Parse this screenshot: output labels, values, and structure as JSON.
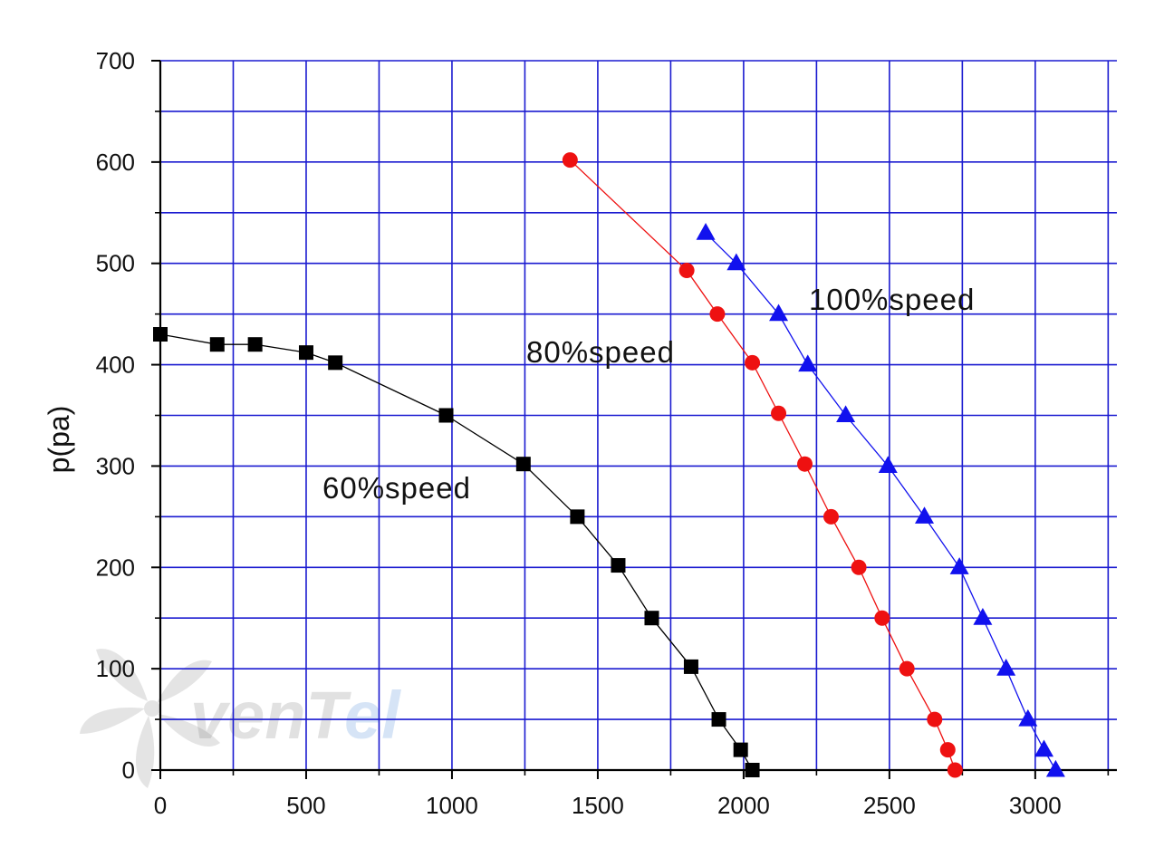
{
  "chart_data": {
    "type": "line",
    "title": "",
    "xlabel": "",
    "ylabel": "p(pa)",
    "xlim": [
      0,
      3280
    ],
    "ylim": [
      0,
      700
    ],
    "x_ticks": [
      "0",
      "500",
      "1000",
      "1500",
      "2000",
      "2500",
      "3000"
    ],
    "y_ticks": [
      "0",
      "100",
      "200",
      "300",
      "400",
      "500",
      "600",
      "700"
    ],
    "grid": true,
    "grid_color": "#1a1ad0",
    "watermark": {
      "brand": "venTel",
      "part1": "venT",
      "part2": "el"
    },
    "series": [
      {
        "name": "60%speed",
        "color": "#000000",
        "marker": "square",
        "x": [
          0,
          195,
          325,
          500,
          600,
          980,
          1245,
          1430,
          1570,
          1685,
          1820,
          1915,
          1990,
          2030
        ],
        "y": [
          430,
          420,
          420,
          412,
          402,
          350,
          302,
          250,
          202,
          150,
          102,
          50,
          20,
          0
        ]
      },
      {
        "name": "80%speed",
        "color": "#ee1111",
        "marker": "circle",
        "x": [
          1405,
          1805,
          1910,
          2030,
          2120,
          2210,
          2300,
          2395,
          2475,
          2560,
          2655,
          2700,
          2725
        ],
        "y": [
          602,
          493,
          450,
          402,
          352,
          302,
          250,
          200,
          150,
          100,
          50,
          20,
          0
        ]
      },
      {
        "name": "100%speed",
        "color": "#1111ee",
        "marker": "triangle",
        "x": [
          1870,
          1975,
          2120,
          2220,
          2350,
          2495,
          2620,
          2740,
          2820,
          2900,
          2975,
          3030,
          3070
        ],
        "y": [
          530,
          500,
          450,
          400,
          350,
          300,
          250,
          200,
          150,
          100,
          50,
          20,
          0
        ]
      }
    ]
  }
}
